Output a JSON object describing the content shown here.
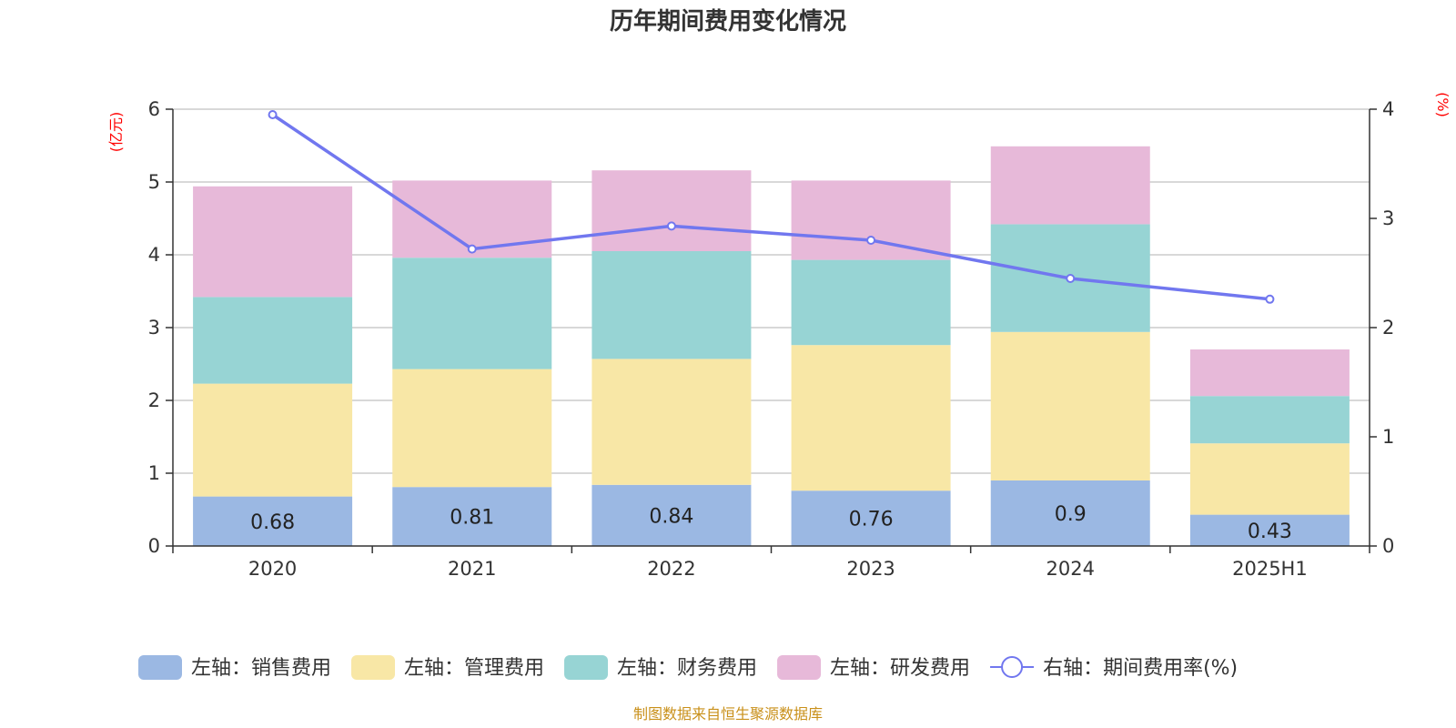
{
  "chart_data": {
    "type": "bar",
    "title": "历年期间费用变化情况",
    "left_axis_unit": "(亿元)",
    "right_axis_unit": "(%)",
    "categories": [
      "2020",
      "2021",
      "2022",
      "2023",
      "2024",
      "2025H1"
    ],
    "ylim_left": [
      0,
      6
    ],
    "yticks_left": [
      "0",
      "1",
      "2",
      "3",
      "4",
      "5",
      "6"
    ],
    "ylim_right": [
      0,
      4
    ],
    "yticks_right": [
      "0",
      "1",
      "2",
      "3",
      "4"
    ],
    "grid": true,
    "legend_position": "bottom",
    "series": [
      {
        "name": "左轴：销售费用",
        "type": "bar",
        "axis": "left",
        "color": "#9bb8e3",
        "values": [
          0.68,
          0.81,
          0.84,
          0.76,
          0.9,
          0.43
        ],
        "labels": [
          "0.68",
          "0.81",
          "0.84",
          "0.76",
          "0.9",
          "0.43"
        ]
      },
      {
        "name": "左轴：管理费用",
        "type": "bar",
        "axis": "left",
        "color": "#f8e7a6",
        "values": [
          1.55,
          1.62,
          1.73,
          2.0,
          2.04,
          0.98
        ]
      },
      {
        "name": "左轴：财务费用",
        "type": "bar",
        "axis": "left",
        "color": "#97d4d4",
        "values": [
          1.19,
          1.53,
          1.48,
          1.17,
          1.48,
          0.65
        ]
      },
      {
        "name": "左轴：研发费用",
        "type": "bar",
        "axis": "left",
        "color": "#e7b9d9",
        "values": [
          1.52,
          1.06,
          1.11,
          1.09,
          1.07,
          0.64
        ]
      },
      {
        "name": "右轴：期间费用率(%)",
        "type": "line",
        "axis": "right",
        "color": "#7177ef",
        "values": [
          3.95,
          2.72,
          2.93,
          2.8,
          2.45,
          2.26
        ]
      }
    ]
  },
  "source": "制图数据来自恒生聚源数据库"
}
